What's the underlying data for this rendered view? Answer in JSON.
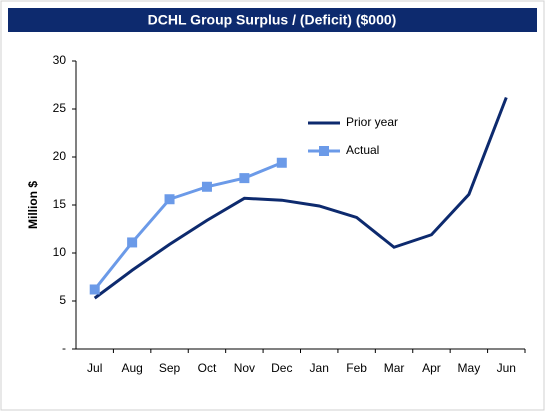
{
  "chart_data": {
    "type": "line",
    "title": "DCHL Group Surplus / (Deficit) ($000)",
    "y_label": "Million $",
    "categories": [
      "Jul",
      "Aug",
      "Sep",
      "Oct",
      "Nov",
      "Dec",
      "Jan",
      "Feb",
      "Mar",
      "Apr",
      "May",
      "Jun"
    ],
    "series": [
      {
        "name": "Prior year",
        "color": "#0d2a6e",
        "marker": false,
        "values": [
          5.3,
          8.2,
          10.9,
          13.4,
          15.7,
          15.5,
          14.9,
          13.7,
          10.6,
          11.9,
          16.1,
          26.2
        ]
      },
      {
        "name": "Actual",
        "color": "#6b9ae8",
        "marker": true,
        "values": [
          6.2,
          11.1,
          15.6,
          16.9,
          17.8,
          19.4,
          null,
          null,
          null,
          null,
          null,
          null
        ]
      }
    ],
    "ylim": [
      0,
      30
    ],
    "yticks": [
      {
        "value": 0,
        "label": "-"
      },
      5,
      10,
      15,
      20,
      25,
      30
    ],
    "grid": false,
    "legend": "upper center"
  }
}
